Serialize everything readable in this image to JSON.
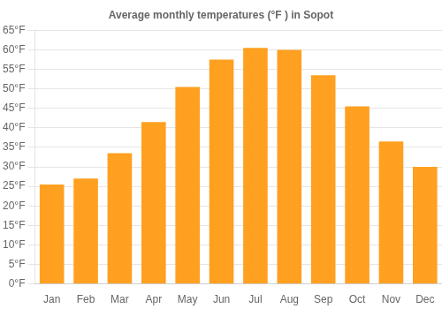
{
  "chart_data": {
    "type": "bar",
    "title": "Average monthly temperatures (°F ) in Sopot",
    "categories": [
      "Jan",
      "Feb",
      "Mar",
      "Apr",
      "May",
      "Jun",
      "Jul",
      "Aug",
      "Sep",
      "Oct",
      "Nov",
      "Dec"
    ],
    "values": [
      25.5,
      27.0,
      33.5,
      41.5,
      50.5,
      57.5,
      60.5,
      60.0,
      53.5,
      45.5,
      36.5,
      30.0
    ],
    "color": "#FFA020",
    "ylim": [
      0,
      65
    ],
    "yticks": [
      {
        "value": 0,
        "label": "0°F"
      },
      {
        "value": 5,
        "label": "5°F"
      },
      {
        "value": 10,
        "label": "10°F"
      },
      {
        "value": 15,
        "label": "15°F"
      },
      {
        "value": 20,
        "label": "20°F"
      },
      {
        "value": 25,
        "label": "25°F"
      },
      {
        "value": 30,
        "label": "30°F"
      },
      {
        "value": 35,
        "label": "35°F"
      },
      {
        "value": 40,
        "label": "40°F"
      },
      {
        "value": 45,
        "label": "45°F"
      },
      {
        "value": 50,
        "label": "50°F"
      },
      {
        "value": 55,
        "label": "55°F"
      },
      {
        "value": 60,
        "label": "60°F"
      },
      {
        "value": 65,
        "label": "65°F"
      }
    ],
    "grid": true
  }
}
